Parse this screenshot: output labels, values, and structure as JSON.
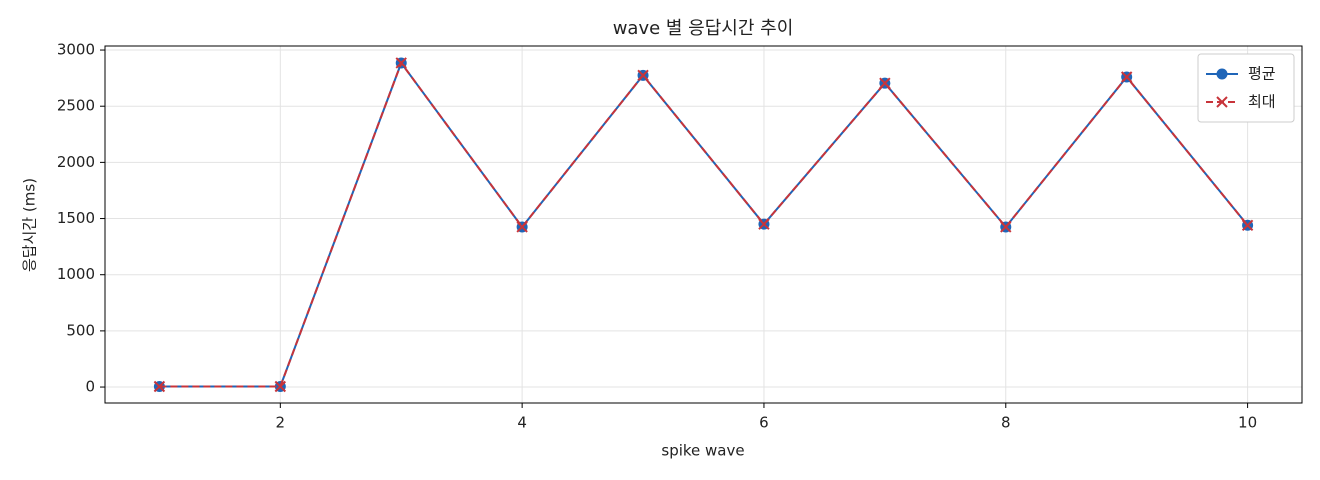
{
  "chart_data": {
    "type": "line",
    "title": "wave 별 응답시간 추이",
    "xlabel": "spike wave",
    "ylabel": "응답시간 (ms)",
    "x": [
      1,
      2,
      3,
      4,
      5,
      6,
      7,
      8,
      9,
      10
    ],
    "series": [
      {
        "name": "평균",
        "color": "#1f65b8",
        "marker": "circle",
        "dash": false,
        "values": [
          5,
          5,
          2885,
          1425,
          2775,
          1450,
          2705,
          1425,
          2760,
          1440
        ]
      },
      {
        "name": "최대",
        "color": "#c8343a",
        "marker": "x",
        "dash": true,
        "values": [
          5,
          5,
          2885,
          1425,
          2775,
          1450,
          2705,
          1425,
          2760,
          1440
        ]
      }
    ],
    "xlim": [
      0.55,
      10.45
    ],
    "xticks": [
      2,
      4,
      6,
      8,
      10
    ],
    "ylim": [
      -142,
      3036
    ],
    "yticks": [
      0,
      500,
      1000,
      1500,
      2000,
      2500,
      3000
    ],
    "grid": true,
    "legend": "upper right"
  }
}
